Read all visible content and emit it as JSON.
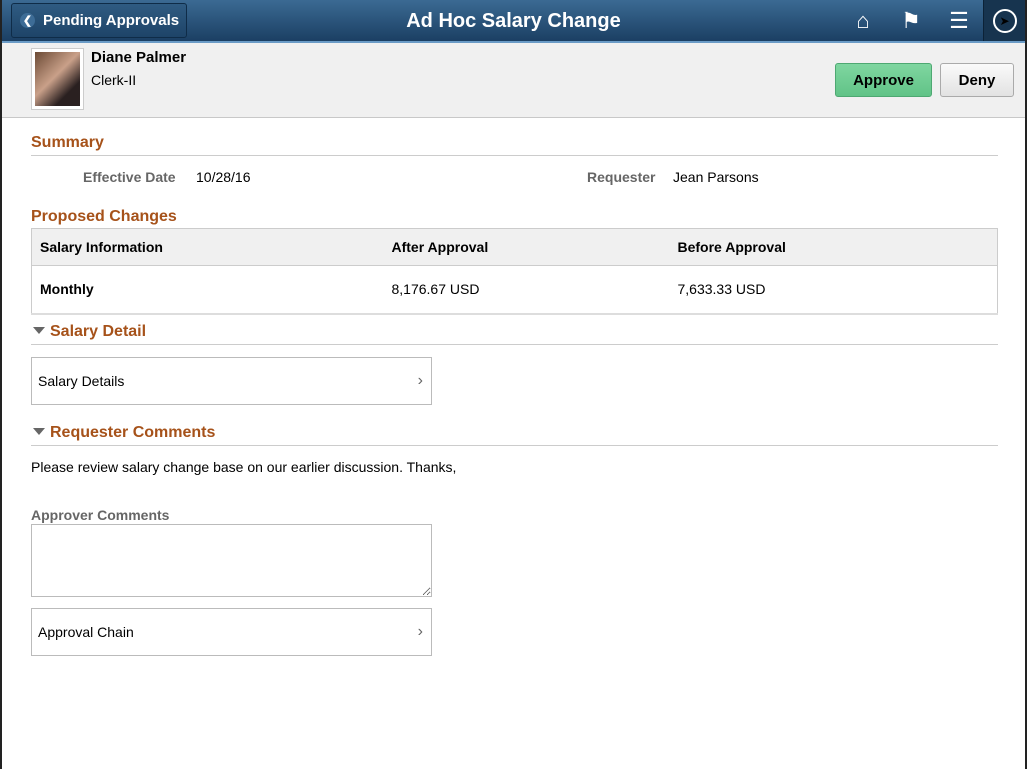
{
  "header": {
    "back_label": "Pending Approvals",
    "title": "Ad Hoc Salary Change"
  },
  "employee": {
    "name": "Diane Palmer",
    "job": "Clerk-II"
  },
  "actions": {
    "approve": "Approve",
    "deny": "Deny"
  },
  "summary": {
    "heading": "Summary",
    "effective_date_label": "Effective Date",
    "effective_date": "10/28/16",
    "requester_label": "Requester",
    "requester": "Jean Parsons"
  },
  "proposed": {
    "heading": "Proposed Changes",
    "columns": [
      "Salary Information",
      "After Approval",
      "Before Approval"
    ],
    "rows": [
      [
        "Monthly",
        "8,176.67 USD",
        "7,633.33 USD"
      ]
    ]
  },
  "salary_detail": {
    "heading": "Salary Detail",
    "link": "Salary Details"
  },
  "requester_comments": {
    "heading": "Requester Comments",
    "text": "Please review salary change base on our earlier discussion. Thanks,"
  },
  "approver_comments": {
    "label": "Approver Comments",
    "value": ""
  },
  "approval_chain": {
    "link": "Approval Chain"
  },
  "colors": {
    "accent": "#a6521a",
    "approve": "#6fcf94",
    "banner": "#1b3f63"
  }
}
